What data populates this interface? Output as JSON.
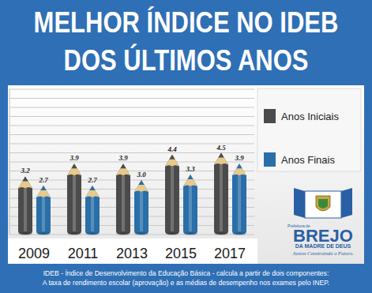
{
  "chart_data": {
    "type": "bar",
    "title": "MELHOR ÍNDICE NO IDEB DOS ÚLTIMOS ANOS",
    "categories": [
      "2009",
      "2011",
      "2013",
      "2015",
      "2017"
    ],
    "series": [
      {
        "name": "Anos Iniciais",
        "color": "#4b4b4b",
        "values": [
          3.2,
          3.9,
          3.9,
          4.4,
          4.5
        ],
        "value_labels": [
          "3.2",
          "3.9",
          "3.9",
          "4.4",
          "4.5"
        ]
      },
      {
        "name": "Anos Finais",
        "color": "#2a6fa8",
        "values": [
          2.7,
          2.7,
          3.0,
          3.3,
          3.9
        ],
        "value_labels": [
          "2.7",
          "2.7",
          "3.0",
          "3.3",
          "3.9"
        ]
      }
    ],
    "ylim": [
      0,
      8
    ],
    "yticks": [
      0,
      0.5,
      1,
      1.5,
      2,
      2.5,
      3,
      3.5,
      4,
      4.5,
      5,
      5.5,
      6,
      6.5,
      7,
      7.5,
      8
    ],
    "grid": true,
    "tick_labels": "x",
    "data_labels": true,
    "legend": "right",
    "annotations": [
      "Prefeitura de",
      "BREJO",
      "DA MADRE DE DEUS",
      "Juntos Construindo o Futuro."
    ],
    "caption": [
      "IDEB - Índice de Desenvolvimento da Educação Básica - calcula a partir de dois componentes:",
      "A taxa de rendimento escolar (aprovação) e as médias de desempenho nos exames pelo INEP."
    ]
  }
}
